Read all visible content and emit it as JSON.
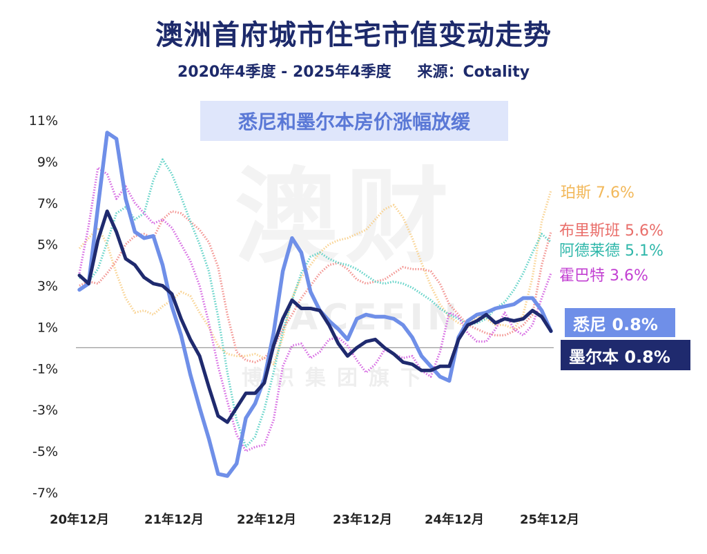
{
  "header": {
    "title": "澳洲首府城市住宅市值变动走势",
    "period": "2020年4季度 - 2025年4季度",
    "source": "来源：Cotality"
  },
  "banner": "悉尼和墨尔本房价涨幅放缓",
  "watermark": {
    "main": "澳财",
    "en": "ACEFIN",
    "cn": "博识集团旗下"
  },
  "chart_data": {
    "type": "line",
    "x_tick_labels": [
      "20年12月",
      "21年12月",
      "22年12月",
      "23年12月",
      "24年12月",
      "25年12月"
    ],
    "y_tick_labels": [
      "11%",
      "9%",
      "7%",
      "5%",
      "3%",
      "1%",
      "-1%",
      "-3%",
      "-5%",
      "-7%"
    ],
    "ylim": [
      -7,
      11
    ],
    "zero_line": true,
    "series": [
      {
        "name": "珀斯",
        "end_label": "珀斯 7.6%",
        "color": "#f8cf8a",
        "style": "dotted",
        "values": [
          4.8,
          5.3,
          5.8,
          5.0,
          3.6,
          2.4,
          1.7,
          1.8,
          1.6,
          2.0,
          2.3,
          2.7,
          2.5,
          1.7,
          1.0,
          0.1,
          -0.3,
          -0.4,
          -0.4,
          -0.3,
          -0.5,
          -0.8,
          0.5,
          2.4,
          3.4,
          4.0,
          4.6,
          5.0,
          5.2,
          5.3,
          5.5,
          5.7,
          6.2,
          6.7,
          6.9,
          6.3,
          5.3,
          4.1,
          3.0,
          2.1,
          1.5,
          1.2,
          1.0,
          1.5,
          1.4,
          1.1,
          1.1,
          0.9,
          1.6,
          3.4,
          6.1,
          7.6
        ]
      },
      {
        "name": "布里斯班",
        "end_label": "布里斯班 5.6%",
        "color": "#f28c88",
        "style": "dotted",
        "values": [
          3.0,
          3.2,
          3.1,
          3.6,
          4.2,
          5.0,
          5.4,
          5.5,
          5.3,
          6.2,
          6.6,
          6.5,
          6.1,
          5.7,
          5.1,
          3.9,
          1.6,
          -0.2,
          -0.6,
          -0.7,
          -0.5,
          0.0,
          0.9,
          1.6,
          2.4,
          3.0,
          3.6,
          4.0,
          4.1,
          3.8,
          3.3,
          3.1,
          3.2,
          3.3,
          3.6,
          3.9,
          3.8,
          3.8,
          3.7,
          3.1,
          2.1,
          1.6,
          1.1,
          0.9,
          0.7,
          0.6,
          0.6,
          0.8,
          1.1,
          1.6,
          4.0,
          5.6
        ]
      },
      {
        "name": "阿德莱德",
        "end_label": "阿德莱德 5.1%",
        "color": "#56cfc3",
        "style": "dotted",
        "values": [
          3.4,
          3.2,
          3.8,
          5.1,
          6.5,
          6.8,
          6.2,
          6.5,
          8.1,
          9.1,
          8.4,
          7.3,
          6.1,
          5.0,
          3.7,
          1.5,
          -1.2,
          -3.5,
          -4.8,
          -4.3,
          -3.0,
          -1.2,
          0.8,
          2.3,
          3.6,
          4.4,
          4.6,
          4.3,
          4.1,
          4.0,
          3.8,
          3.5,
          3.2,
          3.1,
          3.2,
          3.1,
          2.9,
          2.6,
          2.3,
          1.9,
          1.6,
          1.4,
          1.1,
          1.2,
          1.4,
          1.9,
          2.2,
          2.8,
          3.6,
          4.6,
          5.5,
          5.1
        ]
      },
      {
        "name": "霍巴特",
        "end_label": "霍巴特 3.6%",
        "color": "#d35de0",
        "style": "dotted",
        "values": [
          3.6,
          5.9,
          8.7,
          8.4,
          7.2,
          7.8,
          7.0,
          6.5,
          6.0,
          6.2,
          5.8,
          5.0,
          4.2,
          3.0,
          1.2,
          -0.9,
          -2.6,
          -4.2,
          -5.0,
          -4.8,
          -4.7,
          -3.5,
          -0.9,
          0.1,
          0.2,
          -0.5,
          -0.2,
          0.4,
          0.5,
          0.1,
          -0.6,
          -1.2,
          -0.8,
          -0.1,
          -0.3,
          -0.5,
          -0.4,
          -1.1,
          -1.4,
          -0.2,
          1.7,
          1.5,
          0.7,
          0.3,
          0.3,
          0.9,
          1.7,
          0.9,
          0.6,
          1.1,
          2.4,
          3.6
        ]
      },
      {
        "name": "悉尼",
        "end_label": "悉尼 0.8%",
        "color": "#6f8fe8",
        "style": "solid",
        "values": [
          2.8,
          3.1,
          6.8,
          10.4,
          10.1,
          7.2,
          5.6,
          5.3,
          5.4,
          4.0,
          2.0,
          0.6,
          -1.3,
          -2.9,
          -4.4,
          -6.1,
          -6.2,
          -5.6,
          -3.4,
          -2.7,
          -1.5,
          0.7,
          3.7,
          5.3,
          4.6,
          2.7,
          1.8,
          1.3,
          0.9,
          0.4,
          1.4,
          1.6,
          1.5,
          1.5,
          1.4,
          1.1,
          0.5,
          -0.4,
          -0.9,
          -1.4,
          -1.6,
          0.5,
          1.3,
          1.6,
          1.7,
          1.9,
          2.0,
          2.1,
          2.4,
          2.4,
          1.8,
          0.8
        ]
      },
      {
        "name": "墨尔本",
        "end_label": "墨尔本 0.8%",
        "color": "#1f2a6e",
        "style": "solid",
        "values": [
          3.5,
          3.1,
          5.2,
          6.6,
          5.6,
          4.3,
          4.0,
          3.4,
          3.1,
          3.0,
          2.6,
          1.4,
          0.4,
          -0.4,
          -1.9,
          -3.3,
          -3.6,
          -2.9,
          -2.2,
          -2.2,
          -1.7,
          0.1,
          1.4,
          2.3,
          1.9,
          1.9,
          1.8,
          1.1,
          0.2,
          -0.4,
          0.0,
          0.3,
          0.4,
          0.0,
          -0.3,
          -0.7,
          -0.8,
          -1.1,
          -1.1,
          -0.9,
          -0.9,
          0.4,
          1.1,
          1.3,
          1.6,
          1.2,
          1.4,
          1.3,
          1.4,
          1.8,
          1.5,
          0.8
        ]
      }
    ]
  }
}
